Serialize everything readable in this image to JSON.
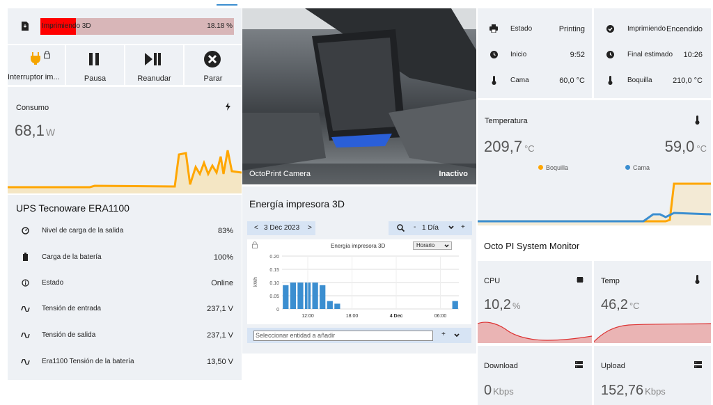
{
  "progress": {
    "label": "Imprimiendo 3D",
    "percent_text": "18.18 %",
    "fraction": 0.1818,
    "color": "#ff0000"
  },
  "controls": {
    "switch_label": "Interruptor im...",
    "pause_label": "Pausa",
    "resume_label": "Reanudar",
    "stop_label": "Parar"
  },
  "consumo": {
    "title": "Consumo",
    "value": "68,1",
    "unit": "W"
  },
  "ups": {
    "title": "UPS Tecnoware ERA1100",
    "rows": [
      {
        "label": "Nivel de carga de la salida",
        "value": "83%"
      },
      {
        "label": "Carga de la batería",
        "value": "100%"
      },
      {
        "label": "Estado",
        "value": "Online"
      },
      {
        "label": "Tensión de entrada",
        "value": "237,1 V"
      },
      {
        "label": "Tensión de salida",
        "value": "237,1 V"
      },
      {
        "label": "Era1100 Tensión de la batería",
        "value": "13,50 V"
      }
    ]
  },
  "camera": {
    "name": "OctoPrint Camera",
    "status": "Inactivo"
  },
  "energy": {
    "title": "Energía impresora 3D",
    "date": "3 Dec 2023",
    "period": "1 Día",
    "chart_title": "Energía impresora 3D",
    "mode": "Horario",
    "entity_placeholder": "Seleccionar entidad a añadir"
  },
  "chart_data": {
    "type": "bar",
    "title": "Energía impresora 3D",
    "ylabel": "kWh",
    "ylim": [
      0,
      0.2
    ],
    "yticks": [
      "0.20",
      "0.15",
      "0.10",
      "0.05",
      "0"
    ],
    "xticks": [
      "12:00",
      "18:00",
      "4 Dec",
      "06:00"
    ],
    "values": [
      0.09,
      0.1,
      0.1,
      0.1,
      0.1,
      0.09,
      0.03,
      0.02,
      0,
      0,
      0,
      0,
      0,
      0,
      0,
      0,
      0,
      0,
      0,
      0,
      0,
      0,
      0,
      0.03
    ],
    "color": "#3b8ed0"
  },
  "status": {
    "estado_label": "Estado",
    "estado_value": "Printing",
    "imprimiendo_label": "Imprimiendo",
    "imprimiendo_value": "Encendido",
    "inicio_label": "Inicio",
    "inicio_value": "9:52",
    "final_label": "Final estimado",
    "final_value": "10:26",
    "cama_label": "Cama",
    "cama_value": "60,0 °C",
    "boquilla_label": "Boquilla",
    "boquilla_value": "210,0 °C"
  },
  "temperatura": {
    "title": "Temperatura",
    "value1": "209,7",
    "value2": "59,0",
    "unit": "°C",
    "legend1": "Boquilla",
    "legend2": "Cama",
    "color1": "#ffa600",
    "color2": "#3b8ed0"
  },
  "monitor": {
    "title": "Octo PI System Monitor",
    "cpu": {
      "label": "CPU",
      "value": "10,2",
      "unit": "%"
    },
    "temp": {
      "label": "Temp",
      "value": "46,2",
      "unit": "°C"
    },
    "download": {
      "label": "Download",
      "value": "0",
      "unit": "Kbps"
    },
    "upload": {
      "label": "Upload",
      "value": "152,76",
      "unit": "Kbps"
    }
  }
}
